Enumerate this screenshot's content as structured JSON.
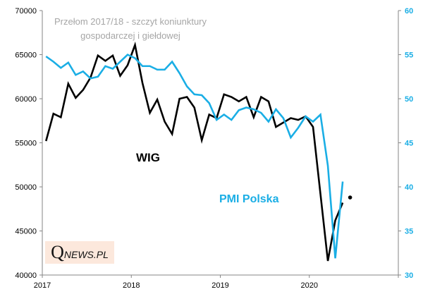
{
  "chart_data": {
    "type": "line",
    "title": "",
    "annotation": [
      "Przełom 2017/18  - szczyt koniunktury",
      "gospodarczej i giełdowej"
    ],
    "x_ticks": [
      "2017",
      "2018",
      "2019",
      "2020"
    ],
    "x_range": [
      "2017-01",
      "2021-01"
    ],
    "y_left": {
      "range": [
        40000,
        70000
      ],
      "ticks": [
        40000,
        45000,
        50000,
        55000,
        60000,
        65000,
        70000
      ]
    },
    "y_right": {
      "range": [
        30,
        60
      ],
      "ticks": [
        30,
        35,
        40,
        45,
        50,
        55,
        60
      ]
    },
    "series": [
      {
        "name": "WIG",
        "axis": "left",
        "color": "#000000",
        "values": [
          55200,
          58300,
          57900,
          61700,
          60100,
          61000,
          62400,
          64900,
          64300,
          64900,
          62600,
          63800,
          66100,
          61800,
          58400,
          59900,
          57400,
          56000,
          60000,
          60200,
          59000,
          55300,
          58200,
          57800,
          60500,
          60200,
          59700,
          60200,
          57900,
          60200,
          59700,
          56800,
          57300,
          57800,
          57600,
          58000,
          56800,
          49200,
          41600,
          46200,
          48200
        ],
        "extra_point": {
          "month_index": 41,
          "value": 48800
        }
      },
      {
        "name": "PMI Polska",
        "axis": "right",
        "color": "#1aaee5",
        "values": [
          54.8,
          54.2,
          53.5,
          54.1,
          52.7,
          53.1,
          52.3,
          52.5,
          53.7,
          53.4,
          54.2,
          55.0,
          54.6,
          53.7,
          53.7,
          53.3,
          53.3,
          54.2,
          52.9,
          51.4,
          50.5,
          50.4,
          49.5,
          47.6,
          48.2,
          47.6,
          48.7,
          49.0,
          48.8,
          48.4,
          47.4,
          48.8,
          47.8,
          45.6,
          46.7,
          48.0,
          47.4,
          48.2,
          42.4,
          31.9,
          40.6
        ]
      }
    ]
  },
  "labels": {
    "wig": "WIG",
    "pmi": "PMI Polska"
  },
  "logo": {
    "q": "Q",
    "rest": "NEWS.PL"
  }
}
